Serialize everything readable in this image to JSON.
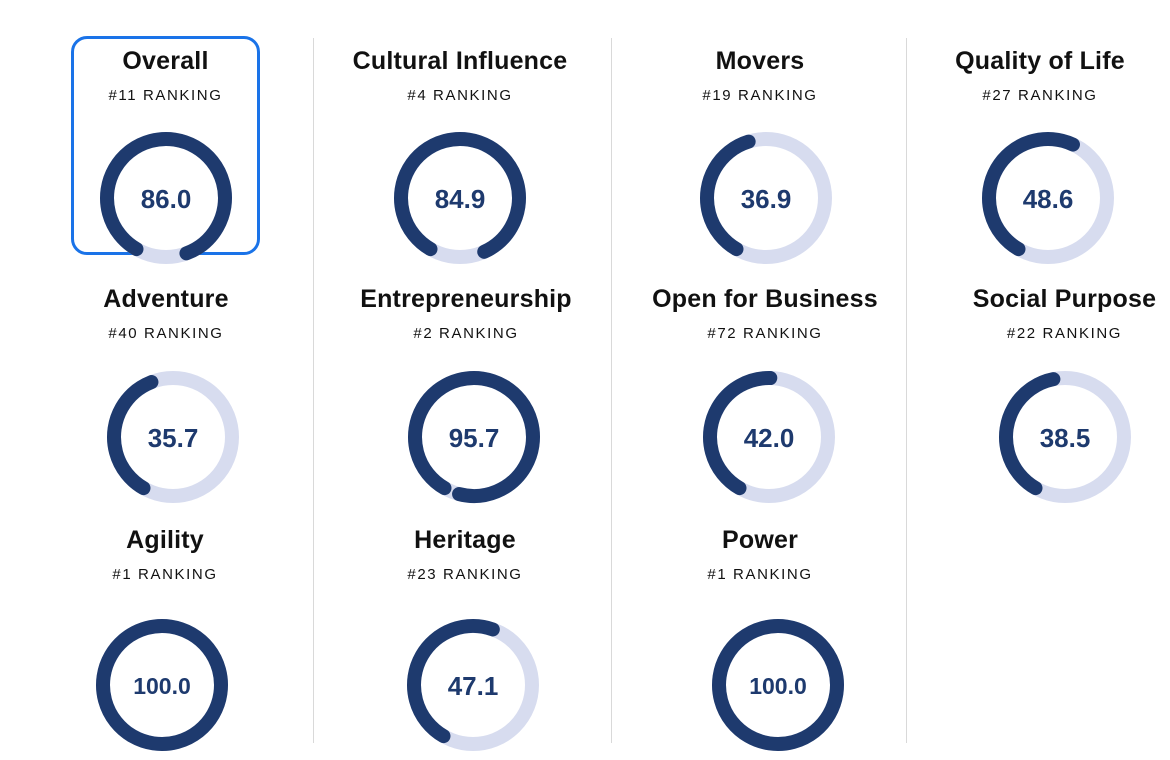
{
  "colors": {
    "ring_fill": "#1e3a6e",
    "ring_track": "#d7dcef",
    "value_text": "#1e3a6e",
    "selected_border": "#1a73e8"
  },
  "cards": [
    {
      "id": "overall",
      "title": "Overall",
      "ranking": "#11 RANKING",
      "score": "86.0",
      "score_value": 86.0,
      "selected": true
    },
    {
      "id": "cultural-influence",
      "title": "Cultural Influence",
      "ranking": "#4 RANKING",
      "score": "84.9",
      "score_value": 84.9,
      "selected": false
    },
    {
      "id": "movers",
      "title": "Movers",
      "ranking": "#19 RANKING",
      "score": "36.9",
      "score_value": 36.9,
      "selected": false
    },
    {
      "id": "quality-of-life",
      "title": "Quality of Life",
      "ranking": "#27 RANKING",
      "score": "48.6",
      "score_value": 48.6,
      "selected": false
    },
    {
      "id": "adventure",
      "title": "Adventure",
      "ranking": "#40 RANKING",
      "score": "35.7",
      "score_value": 35.7,
      "selected": false
    },
    {
      "id": "entrepreneurship",
      "title": "Entrepreneurship",
      "ranking": "#2 RANKING",
      "score": "95.7",
      "score_value": 95.7,
      "selected": false
    },
    {
      "id": "open-for-business",
      "title": "Open for Business",
      "ranking": "#72 RANKING",
      "score": "42.0",
      "score_value": 42.0,
      "selected": false
    },
    {
      "id": "social-purpose",
      "title": "Social Purpose",
      "ranking": "#22 RANKING",
      "score": "38.5",
      "score_value": 38.5,
      "selected": false
    },
    {
      "id": "agility",
      "title": "Agility",
      "ranking": "#1 RANKING",
      "score": "100.0",
      "score_value": 100.0,
      "selected": false
    },
    {
      "id": "heritage",
      "title": "Heritage",
      "ranking": "#23 RANKING",
      "score": "47.1",
      "score_value": 47.1,
      "selected": false
    },
    {
      "id": "power",
      "title": "Power",
      "ranking": "#1 RANKING",
      "score": "100.0",
      "score_value": 100.0,
      "selected": false
    }
  ]
}
